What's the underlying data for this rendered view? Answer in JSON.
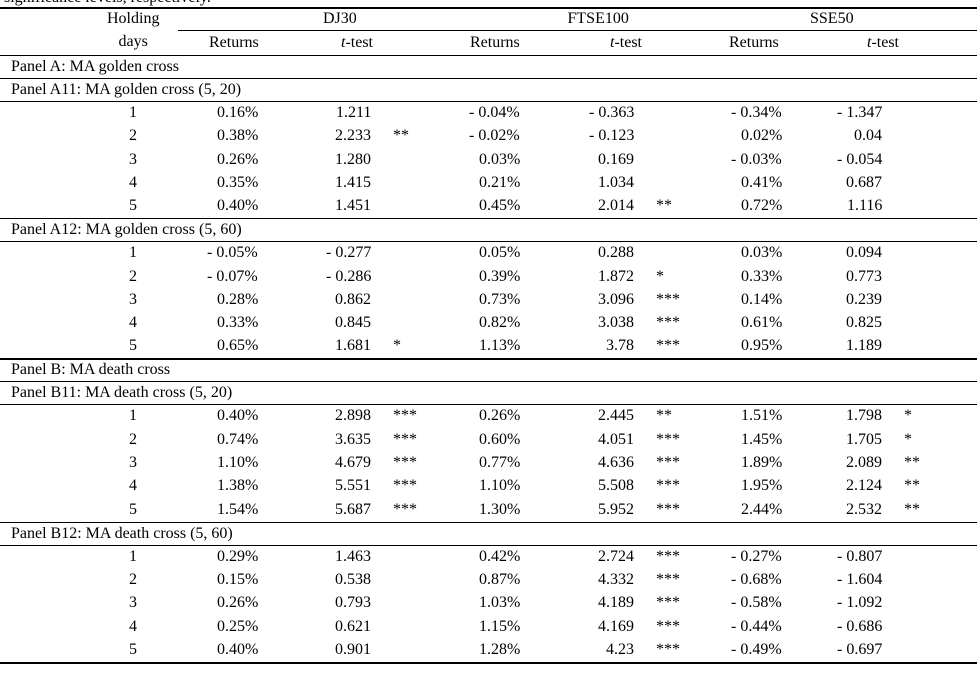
{
  "caption": "significance levels, respectively.",
  "header": {
    "holding": "Holding",
    "days": "days",
    "groups": [
      "DJ30",
      "FTSE100",
      "SSE50"
    ],
    "subheaders": [
      "Returns",
      "t-test",
      "Returns",
      "t-test",
      "Returns",
      "t-test"
    ]
  },
  "panels": [
    {
      "title": "Panel A: MA golden cross",
      "subpanels": [
        {
          "title": "Panel A11: MA golden cross (5, 20)",
          "rows": [
            [
              1,
              "0.16%",
              "1.211",
              null,
              "- 0.04%",
              "- 0.363",
              null,
              "- 0.34%",
              "- 1.347",
              null
            ],
            [
              2,
              "0.38%",
              "2.233",
              "**",
              "- 0.02%",
              "- 0.123",
              null,
              "0.02%",
              "0.04",
              null
            ],
            [
              3,
              "0.26%",
              "1.280",
              null,
              "0.03%",
              "0.169",
              null,
              "- 0.03%",
              "- 0.054",
              null
            ],
            [
              4,
              "0.35%",
              "1.415",
              null,
              "0.21%",
              "1.034",
              null,
              "0.41%",
              "0.687",
              null
            ],
            [
              5,
              "0.40%",
              "1.451",
              null,
              "0.45%",
              "2.014",
              "**",
              "0.72%",
              "1.116",
              null
            ]
          ]
        },
        {
          "title": "Panel A12: MA golden cross (5, 60)",
          "rows": [
            [
              1,
              "- 0.05%",
              "- 0.277",
              null,
              "0.05%",
              "0.288",
              null,
              "0.03%",
              "0.094",
              null
            ],
            [
              2,
              "- 0.07%",
              "- 0.286",
              null,
              "0.39%",
              "1.872",
              "*",
              "0.33%",
              "0.773",
              null
            ],
            [
              3,
              "0.28%",
              "0.862",
              null,
              "0.73%",
              "3.096",
              "***",
              "0.14%",
              "0.239",
              null
            ],
            [
              4,
              "0.33%",
              "0.845",
              null,
              "0.82%",
              "3.038",
              "***",
              "0.61%",
              "0.825",
              null
            ],
            [
              5,
              "0.65%",
              "1.681",
              "*",
              "1.13%",
              "3.78",
              "***",
              "0.95%",
              "1.189",
              null
            ]
          ]
        }
      ]
    },
    {
      "title": "Panel B: MA death cross",
      "subpanels": [
        {
          "title": "Panel B11: MA death cross (5, 20)",
          "rows": [
            [
              1,
              "0.40%",
              "2.898",
              "***",
              "0.26%",
              "2.445",
              "**",
              "1.51%",
              "1.798",
              "*"
            ],
            [
              2,
              "0.74%",
              "3.635",
              "***",
              "0.60%",
              "4.051",
              "***",
              "1.45%",
              "1.705",
              "*"
            ],
            [
              3,
              "1.10%",
              "4.679",
              "***",
              "0.77%",
              "4.636",
              "***",
              "1.89%",
              "2.089",
              "**"
            ],
            [
              4,
              "1.38%",
              "5.551",
              "***",
              "1.10%",
              "5.508",
              "***",
              "1.95%",
              "2.124",
              "**"
            ],
            [
              5,
              "1.54%",
              "5.687",
              "***",
              "1.30%",
              "5.952",
              "***",
              "2.44%",
              "2.532",
              "**"
            ]
          ]
        },
        {
          "title": "Panel B12: MA death cross (5, 60)",
          "rows": [
            [
              1,
              "0.29%",
              "1.463",
              null,
              "0.42%",
              "2.724",
              "***",
              "- 0.27%",
              "- 0.807",
              null
            ],
            [
              2,
              "0.15%",
              "0.538",
              null,
              "0.87%",
              "4.332",
              "***",
              "- 0.68%",
              "- 1.604",
              null
            ],
            [
              3,
              "0.26%",
              "0.793",
              null,
              "1.03%",
              "4.189",
              "***",
              "- 0.58%",
              "- 1.092",
              null
            ],
            [
              4,
              "0.25%",
              "0.621",
              null,
              "1.15%",
              "4.169",
              "***",
              "- 0.44%",
              "- 0.686",
              null
            ],
            [
              5,
              "0.40%",
              "0.901",
              null,
              "1.28%",
              "4.23",
              "***",
              "- 0.49%",
              "- 0.697",
              null
            ]
          ]
        }
      ]
    }
  ]
}
